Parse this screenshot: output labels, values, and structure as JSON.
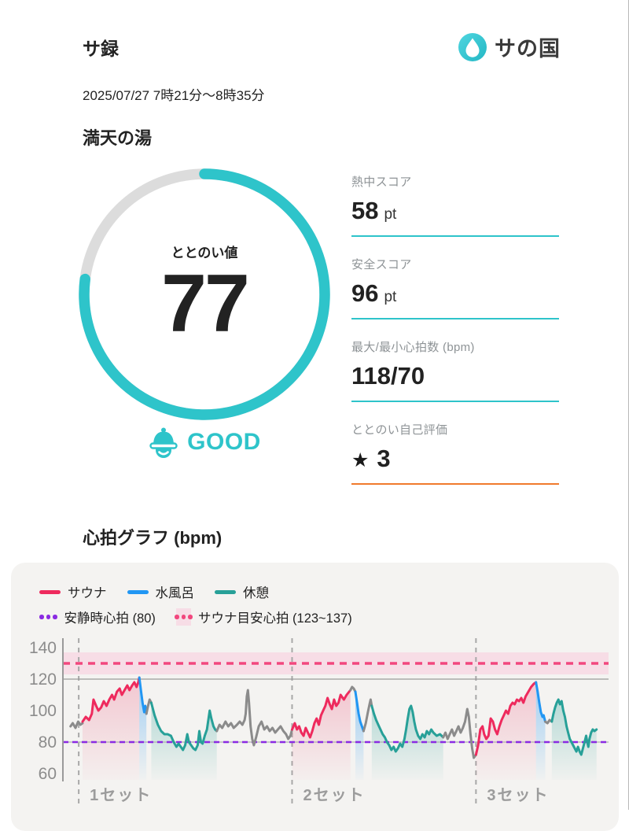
{
  "header": {
    "title": "サ録",
    "logo_text": "サの国"
  },
  "session": {
    "datetime": "2025/07/27 7時21分〜8時35分",
    "venue": "満天の湯"
  },
  "gauge": {
    "label": "ととのい値",
    "value": 77,
    "max": 100,
    "status": "GOOD"
  },
  "stats": [
    {
      "label": "熱中スコア",
      "value": "58",
      "unit": "pt"
    },
    {
      "label": "安全スコア",
      "value": "96",
      "unit": "pt"
    },
    {
      "label": "最大/最小心拍数 (bpm)",
      "value": "118/70",
      "unit": ""
    },
    {
      "label": "ととのい自己評価",
      "star": "★",
      "value": "3",
      "unit": ""
    }
  ],
  "chart_section_title": "心拍グラフ (bpm)",
  "colors": {
    "accent_teal": "#2ec4ca",
    "ring_track": "#dcdcdc",
    "underline_orange": "#f07a2d",
    "card_bg": "#f4f3f1",
    "sauna": "#ee2a5d",
    "cold": "#2196f3",
    "rest": "#27a098",
    "gray": "#8b8b8b",
    "resting_line": "#8a2be2",
    "guide_line": "#f2477e",
    "band_fill": "#f7dde6",
    "axis_gray": "#9a9a9a",
    "tick_gray": "#8c8c8c",
    "set_label_gray": "#9c9c9c",
    "logo_dark": "#3a3a3a"
  },
  "chart_data": {
    "type": "line",
    "title": "心拍グラフ (bpm)",
    "ylabel": "bpm",
    "ylim": [
      55,
      145
    ],
    "yticks": [
      140,
      120,
      100,
      80,
      60
    ],
    "grid_lines": [
      120,
      80
    ],
    "resting_hr": {
      "label": "安静時心拍 (80)",
      "value": 80
    },
    "target_band": {
      "label": "サウナ目安心拍 (123~137)",
      "from": 123,
      "to": 137,
      "center": 130
    },
    "sets": [
      {
        "label": "1セット",
        "x": 2.9
      },
      {
        "label": "2セット",
        "x": 42.0
      },
      {
        "label": "3セット",
        "x": 75.7
      }
    ],
    "legend": [
      {
        "label": "サウナ",
        "swatch": "line",
        "color_key": "sauna"
      },
      {
        "label": "水風呂",
        "swatch": "line",
        "color_key": "cold"
      },
      {
        "label": "休憩",
        "swatch": "line",
        "color_key": "rest"
      },
      {
        "label": "安静時心拍 (80)",
        "swatch": "dots",
        "color_key": "resting_line"
      },
      {
        "label": "サウナ目安心拍 (123~137)",
        "swatch": "band",
        "color_key": "guide_line"
      }
    ],
    "x_units": "percent_of_plot_width",
    "segments": [
      {
        "phase": "gray",
        "points": [
          [
            1.4,
            90
          ],
          [
            1.8,
            92
          ],
          [
            2.3,
            89
          ],
          [
            2.8,
            93
          ],
          [
            3.2,
            91
          ],
          [
            3.6,
            92
          ]
        ]
      },
      {
        "phase": "sauna",
        "points": [
          [
            3.6,
            93
          ],
          [
            4.2,
            96
          ],
          [
            4.8,
            94
          ],
          [
            5.3,
            98
          ],
          [
            5.6,
            107
          ],
          [
            6.1,
            103
          ],
          [
            6.5,
            100
          ],
          [
            7.0,
            102
          ],
          [
            7.5,
            106
          ],
          [
            8.0,
            103
          ],
          [
            8.5,
            107
          ],
          [
            9.0,
            110
          ],
          [
            9.4,
            107
          ],
          [
            9.9,
            112
          ],
          [
            10.4,
            114
          ],
          [
            10.8,
            110
          ],
          [
            11.3,
            113
          ],
          [
            11.8,
            116
          ],
          [
            12.2,
            113
          ],
          [
            12.7,
            116
          ],
          [
            13.1,
            118
          ],
          [
            13.5,
            115
          ],
          [
            13.8,
            118
          ],
          [
            14.0,
            121
          ]
        ]
      },
      {
        "phase": "cold",
        "points": [
          [
            14.0,
            121
          ],
          [
            14.3,
            113
          ],
          [
            14.6,
            105
          ],
          [
            14.9,
            99
          ],
          [
            15.1,
            103
          ],
          [
            15.3,
            98
          ]
        ]
      },
      {
        "phase": "gray",
        "points": [
          [
            15.3,
            98
          ],
          [
            15.6,
            103
          ],
          [
            15.9,
            107
          ],
          [
            16.2,
            105
          ]
        ]
      },
      {
        "phase": "rest",
        "points": [
          [
            16.2,
            105
          ],
          [
            16.8,
            97
          ],
          [
            17.4,
            91
          ],
          [
            18.0,
            87
          ],
          [
            18.6,
            85
          ],
          [
            19.2,
            85
          ],
          [
            19.8,
            84
          ],
          [
            20.3,
            80
          ],
          [
            20.8,
            77
          ],
          [
            21.2,
            79
          ],
          [
            21.6,
            77
          ],
          [
            22.0,
            75
          ],
          [
            22.4,
            78
          ],
          [
            22.8,
            85
          ],
          [
            23.1,
            80
          ],
          [
            23.5,
            78
          ],
          [
            23.9,
            76
          ],
          [
            24.3,
            75
          ],
          [
            24.7,
            78
          ],
          [
            25.0,
            87
          ],
          [
            25.3,
            80
          ],
          [
            25.6,
            79
          ],
          [
            26.0,
            84
          ],
          [
            26.4,
            88
          ],
          [
            26.9,
            100
          ],
          [
            27.2,
            95
          ],
          [
            27.6,
            90
          ],
          [
            27.9,
            88
          ],
          [
            28.2,
            87
          ]
        ]
      },
      {
        "phase": "gray",
        "points": [
          [
            28.2,
            87
          ],
          [
            28.7,
            91
          ],
          [
            29.2,
            89
          ],
          [
            29.8,
            93
          ],
          [
            30.3,
            90
          ],
          [
            30.8,
            92
          ],
          [
            31.3,
            89
          ],
          [
            31.9,
            91
          ],
          [
            32.4,
            93
          ],
          [
            32.9,
            91
          ],
          [
            33.3,
            94
          ],
          [
            33.5,
            98
          ],
          [
            33.7,
            109
          ],
          [
            33.9,
            113
          ],
          [
            34.1,
            105
          ],
          [
            34.4,
            90
          ],
          [
            34.7,
            82
          ],
          [
            35.0,
            78
          ],
          [
            35.4,
            83
          ],
          [
            35.9,
            90
          ],
          [
            36.4,
            93
          ],
          [
            36.9,
            88
          ],
          [
            37.4,
            90
          ],
          [
            37.9,
            87
          ],
          [
            38.4,
            89
          ],
          [
            38.9,
            86
          ],
          [
            39.4,
            88
          ],
          [
            39.9,
            90
          ],
          [
            40.4,
            87
          ],
          [
            40.9,
            85
          ],
          [
            41.3,
            82
          ],
          [
            41.7,
            84
          ],
          [
            42.0,
            88
          ]
        ]
      },
      {
        "phase": "sauna",
        "points": [
          [
            42.0,
            88
          ],
          [
            42.5,
            92
          ],
          [
            42.9,
            88
          ],
          [
            43.3,
            90
          ],
          [
            43.7,
            86
          ],
          [
            44.1,
            84
          ],
          [
            44.5,
            89
          ],
          [
            44.9,
            86
          ],
          [
            45.3,
            83
          ],
          [
            45.7,
            87
          ],
          [
            46.1,
            92
          ],
          [
            46.5,
            95
          ],
          [
            46.9,
            91
          ],
          [
            47.3,
            97
          ],
          [
            47.7,
            100
          ],
          [
            48.1,
            103
          ],
          [
            48.5,
            108
          ],
          [
            48.9,
            104
          ],
          [
            49.3,
            101
          ],
          [
            49.7,
            107
          ],
          [
            50.1,
            103
          ],
          [
            50.5,
            105
          ],
          [
            50.9,
            110
          ],
          [
            51.5,
            107
          ],
          [
            52.0,
            110
          ],
          [
            52.7,
            113
          ]
        ]
      },
      {
        "phase": "gray",
        "points": [
          [
            52.7,
            113
          ],
          [
            53.0,
            115
          ],
          [
            53.3,
            114
          ],
          [
            53.6,
            112
          ]
        ]
      },
      {
        "phase": "cold",
        "points": [
          [
            53.6,
            112
          ],
          [
            53.9,
            105
          ],
          [
            54.2,
            98
          ],
          [
            54.5,
            93
          ],
          [
            54.8,
            90
          ],
          [
            55.1,
            87
          ]
        ]
      },
      {
        "phase": "gray",
        "points": [
          [
            55.1,
            87
          ],
          [
            55.5,
            92
          ],
          [
            55.9,
            99
          ],
          [
            56.2,
            104
          ],
          [
            56.4,
            107
          ],
          [
            56.6,
            103
          ]
        ]
      },
      {
        "phase": "rest",
        "points": [
          [
            56.6,
            103
          ],
          [
            57.0,
            98
          ],
          [
            57.4,
            94
          ],
          [
            57.8,
            91
          ],
          [
            58.2,
            88
          ],
          [
            58.6,
            85
          ],
          [
            59.0,
            83
          ],
          [
            59.4,
            80
          ],
          [
            59.8,
            78
          ],
          [
            60.2,
            75
          ],
          [
            60.6,
            77
          ],
          [
            61.0,
            74
          ],
          [
            61.4,
            76
          ],
          [
            61.8,
            79
          ],
          [
            62.2,
            77
          ],
          [
            62.6,
            82
          ],
          [
            62.9,
            88
          ],
          [
            63.2,
            95
          ],
          [
            63.5,
            101
          ],
          [
            63.8,
            103
          ],
          [
            64.1,
            99
          ],
          [
            64.4,
            93
          ],
          [
            64.7,
            88
          ],
          [
            65.1,
            84
          ],
          [
            65.5,
            82
          ],
          [
            65.9,
            85
          ],
          [
            66.3,
            83
          ],
          [
            66.7,
            87
          ],
          [
            67.1,
            85
          ],
          [
            67.5,
            88
          ],
          [
            67.9,
            86
          ],
          [
            68.5,
            84
          ],
          [
            69.1,
            85
          ],
          [
            69.7,
            83
          ]
        ]
      },
      {
        "phase": "gray",
        "points": [
          [
            69.7,
            83
          ],
          [
            70.1,
            86
          ],
          [
            70.5,
            82
          ],
          [
            70.9,
            85
          ],
          [
            71.3,
            88
          ],
          [
            71.7,
            84
          ],
          [
            72.1,
            87
          ],
          [
            72.5,
            90
          ],
          [
            72.9,
            86
          ],
          [
            73.3,
            89
          ],
          [
            73.7,
            93
          ],
          [
            74.1,
            101
          ],
          [
            74.4,
            96
          ],
          [
            74.7,
            85
          ],
          [
            75.0,
            76
          ],
          [
            75.3,
            70
          ],
          [
            75.7,
            72
          ]
        ]
      },
      {
        "phase": "sauna",
        "points": [
          [
            75.7,
            72
          ],
          [
            76.1,
            78
          ],
          [
            76.5,
            88
          ],
          [
            76.9,
            90
          ],
          [
            77.2,
            85
          ],
          [
            77.6,
            82
          ],
          [
            78.0,
            84
          ],
          [
            78.4,
            95
          ],
          [
            78.8,
            93
          ],
          [
            79.2,
            88
          ],
          [
            79.6,
            85
          ],
          [
            80.0,
            90
          ],
          [
            80.4,
            94
          ],
          [
            80.8,
            97
          ],
          [
            81.2,
            100
          ],
          [
            81.6,
            98
          ],
          [
            82.0,
            103
          ],
          [
            82.4,
            105
          ],
          [
            82.8,
            104
          ],
          [
            83.2,
            107
          ],
          [
            83.6,
            106
          ],
          [
            84.0,
            108
          ],
          [
            84.4,
            105
          ],
          [
            84.8,
            109
          ],
          [
            85.3,
            112
          ],
          [
            85.8,
            115
          ],
          [
            86.3,
            117
          ],
          [
            86.7,
            118
          ]
        ]
      },
      {
        "phase": "cold",
        "points": [
          [
            86.7,
            118
          ],
          [
            87.0,
            112
          ],
          [
            87.3,
            105
          ],
          [
            87.6,
            99
          ],
          [
            87.9,
            96
          ],
          [
            88.1,
            97
          ],
          [
            88.4,
            93
          ]
        ]
      },
      {
        "phase": "gray",
        "points": [
          [
            88.4,
            93
          ],
          [
            88.8,
            92
          ],
          [
            89.2,
            94
          ],
          [
            89.6,
            93
          ]
        ]
      },
      {
        "phase": "rest",
        "points": [
          [
            89.6,
            93
          ],
          [
            89.9,
            98
          ],
          [
            90.2,
            102
          ],
          [
            90.5,
            105
          ],
          [
            90.8,
            107
          ],
          [
            91.1,
            104
          ],
          [
            91.4,
            106
          ],
          [
            91.7,
            100
          ],
          [
            92.0,
            96
          ],
          [
            92.3,
            90
          ],
          [
            92.6,
            86
          ],
          [
            92.9,
            82
          ],
          [
            93.2,
            80
          ],
          [
            93.5,
            78
          ],
          [
            93.8,
            76
          ],
          [
            94.1,
            74
          ],
          [
            94.4,
            77
          ],
          [
            94.7,
            74
          ],
          [
            95.0,
            72
          ],
          [
            95.3,
            76
          ],
          [
            95.6,
            80
          ],
          [
            95.9,
            84
          ],
          [
            96.1,
            80
          ],
          [
            96.3,
            77
          ],
          [
            96.5,
            82
          ],
          [
            96.8,
            86
          ],
          [
            97.1,
            88
          ],
          [
            97.4,
            87
          ],
          [
            97.8,
            88
          ]
        ]
      }
    ]
  }
}
